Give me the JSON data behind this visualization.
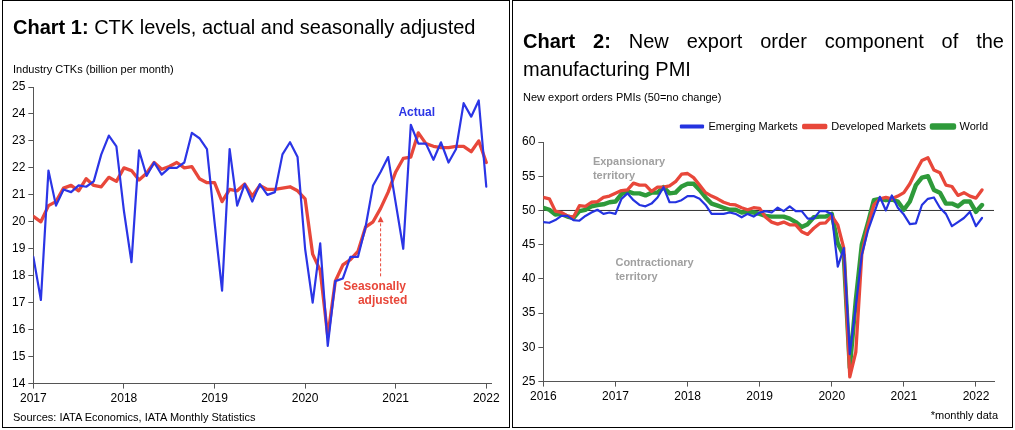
{
  "chart_data": [
    {
      "type": "line",
      "title": "Chart 1: CTK levels, actual and seasonally adjusted",
      "ylabel": "Industry CTKs (billion per month)",
      "x": [
        "2017-01",
        "2017-02",
        "2017-03",
        "2017-04",
        "2017-05",
        "2017-06",
        "2017-07",
        "2017-08",
        "2017-09",
        "2017-10",
        "2017-11",
        "2017-12",
        "2018-01",
        "2018-02",
        "2018-03",
        "2018-04",
        "2018-05",
        "2018-06",
        "2018-07",
        "2018-08",
        "2018-09",
        "2018-10",
        "2018-11",
        "2018-12",
        "2019-01",
        "2019-02",
        "2019-03",
        "2019-04",
        "2019-05",
        "2019-06",
        "2019-07",
        "2019-08",
        "2019-09",
        "2019-10",
        "2019-11",
        "2019-12",
        "2020-01",
        "2020-02",
        "2020-03",
        "2020-04",
        "2020-05",
        "2020-06",
        "2020-07",
        "2020-08",
        "2020-09",
        "2020-10",
        "2020-11",
        "2020-12",
        "2021-01",
        "2021-02",
        "2021-03",
        "2021-04",
        "2021-05",
        "2021-06",
        "2021-07",
        "2021-08",
        "2021-09",
        "2021-10",
        "2021-11",
        "2021-12",
        "2022-01"
      ],
      "series": [
        {
          "name": "Actual",
          "color": "#2b35e6",
          "values": [
            18.7,
            17.1,
            21.9,
            20.6,
            21.2,
            21.1,
            21.35,
            21.3,
            21.5,
            22.5,
            23.2,
            22.8,
            20.4,
            18.5,
            22.65,
            21.7,
            22.2,
            21.75,
            22.0,
            22.0,
            22.2,
            23.3,
            23.1,
            22.7,
            20.0,
            17.45,
            22.7,
            20.6,
            21.4,
            20.75,
            21.4,
            21.0,
            21.1,
            22.5,
            22.95,
            22.4,
            19.0,
            17.0,
            19.2,
            15.4,
            17.8,
            17.9,
            18.7,
            18.7,
            19.8,
            21.35,
            21.85,
            22.4,
            20.7,
            19.0,
            23.6,
            22.9,
            22.9,
            22.3,
            22.95,
            22.2,
            22.7,
            24.4,
            23.9,
            24.5,
            21.3
          ]
        },
        {
          "name": "Seasonally adjusted",
          "color": "#e8473a",
          "values": [
            20.2,
            20.0,
            20.6,
            20.75,
            21.25,
            21.35,
            21.15,
            21.6,
            21.35,
            21.3,
            21.65,
            21.5,
            22.0,
            21.9,
            21.55,
            21.8,
            22.2,
            21.95,
            22.05,
            22.2,
            22.0,
            22.05,
            21.6,
            21.45,
            21.45,
            20.75,
            21.2,
            21.15,
            21.4,
            20.95,
            21.35,
            21.2,
            21.2,
            21.25,
            21.3,
            21.15,
            20.85,
            18.8,
            18.2,
            15.75,
            17.8,
            18.4,
            18.6,
            18.9,
            19.8,
            20.0,
            20.5,
            21.1,
            21.85,
            22.35,
            22.4,
            23.3,
            22.9,
            22.8,
            22.75,
            22.75,
            22.8,
            22.8,
            22.6,
            23.0,
            22.2
          ]
        }
      ],
      "xlim": [
        "2017-01",
        "2022-01-20"
      ],
      "xticks": [
        "2017",
        "2018",
        "2019",
        "2020",
        "2021",
        "2022"
      ],
      "ylim": [
        14,
        25
      ],
      "yticks": [
        14,
        15,
        16,
        17,
        18,
        19,
        20,
        21,
        22,
        23,
        24,
        25
      ],
      "grid": false,
      "legend": false,
      "marker": "none",
      "line_style": "solid",
      "annotations": [
        "Sources: IATA Economics, IATA Monthly Statistics"
      ]
    },
    {
      "type": "line",
      "title": "Chart 2: New export order component of the manufacturing PMI",
      "ylabel": "New export orders PMIs (50=no change)",
      "x": [
        "2016-01",
        "2016-02",
        "2016-03",
        "2016-04",
        "2016-05",
        "2016-06",
        "2016-07",
        "2016-08",
        "2016-09",
        "2016-10",
        "2016-11",
        "2016-12",
        "2017-01",
        "2017-02",
        "2017-03",
        "2017-04",
        "2017-05",
        "2017-06",
        "2017-07",
        "2017-08",
        "2017-09",
        "2017-10",
        "2017-11",
        "2017-12",
        "2018-01",
        "2018-02",
        "2018-03",
        "2018-04",
        "2018-05",
        "2018-06",
        "2018-07",
        "2018-08",
        "2018-09",
        "2018-10",
        "2018-11",
        "2018-12",
        "2019-01",
        "2019-02",
        "2019-03",
        "2019-04",
        "2019-05",
        "2019-06",
        "2019-07",
        "2019-08",
        "2019-09",
        "2019-10",
        "2019-11",
        "2019-12",
        "2020-01",
        "2020-02",
        "2020-03",
        "2020-04",
        "2020-05",
        "2020-06",
        "2020-07",
        "2020-08",
        "2020-09",
        "2020-10",
        "2020-11",
        "2020-12",
        "2021-01",
        "2021-02",
        "2021-03",
        "2021-04",
        "2021-05",
        "2021-06",
        "2021-07",
        "2021-08",
        "2021-09",
        "2021-10",
        "2021-11",
        "2021-12",
        "2022-01",
        "2022-02"
      ],
      "series": [
        {
          "name": "Emerging Markets",
          "color": "#2433e0",
          "values": [
            48.3,
            48.2,
            48.6,
            49.2,
            49.2,
            48.6,
            48.5,
            49.2,
            49.7,
            50.1,
            49.5,
            49.7,
            49.5,
            51.7,
            52.5,
            51.5,
            50.8,
            50.6,
            51.0,
            51.9,
            53.4,
            51.2,
            51.2,
            51.5,
            52.1,
            52.1,
            51.7,
            50.8,
            49.5,
            49.5,
            49.5,
            49.7,
            49.5,
            49.0,
            49.5,
            49.1,
            49.7,
            49.9,
            49.7,
            50.4,
            49.9,
            50.6,
            49.9,
            49.9,
            48.8,
            48.8,
            49.9,
            49.9,
            49.5,
            41.8,
            44.5,
            29.0,
            36.0,
            43.5,
            47.0,
            49.5,
            52.0,
            50.0,
            52.2,
            50.4,
            49.4,
            48.0,
            48.1,
            50.8,
            51.7,
            51.9,
            50.4,
            49.5,
            47.7,
            48.3,
            48.9,
            49.8,
            47.7,
            48.9
          ]
        },
        {
          "name": "Developed Markets",
          "color": "#e8473a",
          "values": [
            51.9,
            51.7,
            49.9,
            49.7,
            49.2,
            49.0,
            50.7,
            50.6,
            51.2,
            51.3,
            51.9,
            52.1,
            52.5,
            52.9,
            53.0,
            54.0,
            53.7,
            53.7,
            52.8,
            53.4,
            53.4,
            53.6,
            54.2,
            55.3,
            55.4,
            54.8,
            53.7,
            52.6,
            52.1,
            51.7,
            51.2,
            50.9,
            50.8,
            50.4,
            50.1,
            50.4,
            50.3,
            49.0,
            48.3,
            48.0,
            48.3,
            47.9,
            47.9,
            46.9,
            46.5,
            47.4,
            48.1,
            48.2,
            49.2,
            47.9,
            44.5,
            25.7,
            29.3,
            43.6,
            47.7,
            50.8,
            51.7,
            51.9,
            51.7,
            52.1,
            52.6,
            53.9,
            55.7,
            57.3,
            57.7,
            55.9,
            55.5,
            53.7,
            53.5,
            52.2,
            52.6,
            52.1,
            51.8,
            53.0
          ]
        },
        {
          "name": "World",
          "color": "#2e9a3a",
          "values": [
            50.4,
            50.1,
            49.4,
            49.5,
            49.1,
            48.9,
            49.9,
            50.1,
            50.6,
            50.8,
            50.9,
            51.2,
            51.3,
            52.4,
            52.8,
            52.5,
            52.5,
            52.2,
            52.6,
            52.6,
            53.4,
            52.5,
            52.6,
            53.5,
            53.9,
            53.9,
            53.0,
            51.9,
            51.0,
            50.7,
            50.4,
            50.1,
            50.1,
            49.7,
            49.8,
            49.7,
            49.5,
            49.2,
            49.1,
            49.1,
            49.1,
            48.8,
            48.3,
            47.6,
            48.0,
            49.0,
            49.1,
            49.1,
            49.5,
            45.2,
            43.4,
            27.0,
            36.9,
            45.0,
            48.1,
            51.5,
            51.7,
            51.5,
            51.6,
            51.3,
            50.1,
            51.3,
            53.7,
            54.8,
            55.0,
            53.0,
            52.6,
            51.0,
            51.0,
            50.6,
            51.3,
            51.3,
            49.8,
            50.8
          ]
        }
      ],
      "xlim": [
        "2016-01",
        "2022-04"
      ],
      "xticks": [
        "2016",
        "2017",
        "2018",
        "2019",
        "2020",
        "2021",
        "2022"
      ],
      "ylim": [
        25,
        60
      ],
      "yticks": [
        25,
        30,
        35,
        40,
        45,
        50,
        55,
        60
      ],
      "ref_lines": [
        {
          "axis": "y",
          "value": 50,
          "color": "#333333"
        }
      ],
      "grid": false,
      "legend": "top right",
      "marker": "none",
      "line_style": "solid",
      "annotations": [
        "Expansionary territory",
        "Contractionary territory",
        "*monthly data"
      ]
    }
  ]
}
